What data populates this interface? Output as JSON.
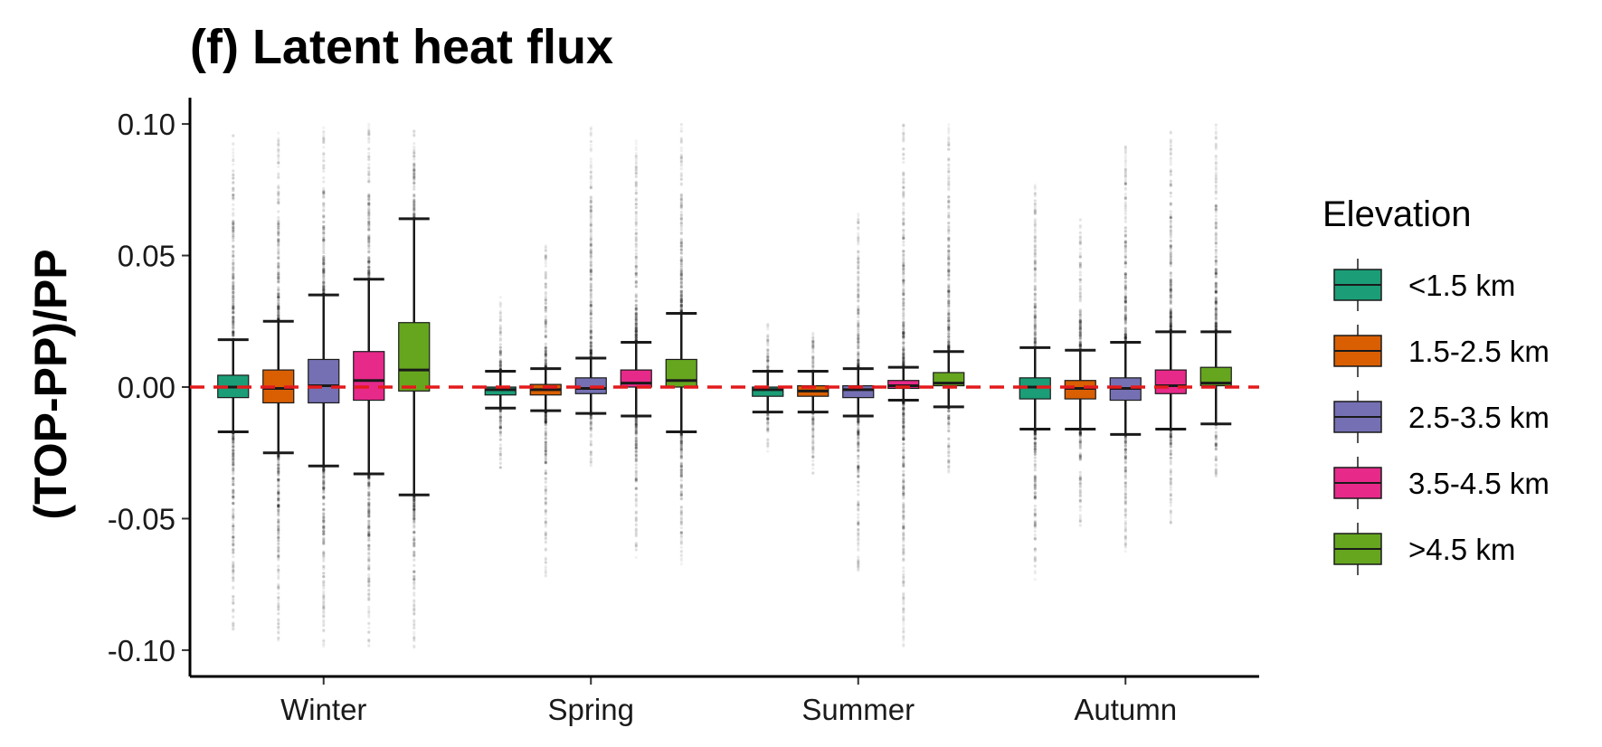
{
  "chart_data": {
    "type": "box",
    "title": "(f) Latent heat flux",
    "xlabel": "",
    "ylabel": "(TOP-PP)/PP",
    "ylim": [
      -0.11,
      0.11
    ],
    "y_ticks": [
      "0.10",
      "0.05",
      "0.00",
      "-0.05",
      "-0.10"
    ],
    "y_tick_values": [
      0.1,
      0.05,
      0.0,
      -0.05,
      -0.1
    ],
    "categories": [
      "Winter",
      "Spring",
      "Summer",
      "Autumn"
    ],
    "reference_line": {
      "y": 0.0,
      "color": "#e41a1c",
      "style": "dashed"
    },
    "legend": {
      "title": "Elevation",
      "placement": "right"
    },
    "series": [
      {
        "name": "<1.5 km",
        "color": "#1b9e77",
        "boxes": [
          {
            "category": "Winter",
            "whisker_low": -0.017,
            "q1": -0.004,
            "median": 0.0,
            "q3": 0.0045,
            "whisker_high": 0.018,
            "outlier_min": -0.093,
            "outlier_max": 0.096
          },
          {
            "category": "Spring",
            "whisker_low": -0.008,
            "q1": -0.003,
            "median": -0.001,
            "q3": 0.0,
            "whisker_high": 0.006,
            "outlier_min": -0.032,
            "outlier_max": 0.035
          },
          {
            "category": "Summer",
            "whisker_low": -0.0095,
            "q1": -0.0035,
            "median": -0.001,
            "q3": 0.0,
            "whisker_high": 0.006,
            "outlier_min": -0.025,
            "outlier_max": 0.025
          },
          {
            "category": "Autumn",
            "whisker_low": -0.016,
            "q1": -0.0045,
            "median": 0.0,
            "q3": 0.0035,
            "whisker_high": 0.015,
            "outlier_min": -0.076,
            "outlier_max": 0.077
          }
        ]
      },
      {
        "name": "1.5-2.5 km",
        "color": "#d95f02",
        "boxes": [
          {
            "category": "Winter",
            "whisker_low": -0.025,
            "q1": -0.006,
            "median": -0.0005,
            "q3": 0.0065,
            "whisker_high": 0.025,
            "outlier_min": -0.1,
            "outlier_max": 0.097
          },
          {
            "category": "Spring",
            "whisker_low": -0.009,
            "q1": -0.003,
            "median": -0.001,
            "q3": 0.001,
            "whisker_high": 0.007,
            "outlier_min": -0.072,
            "outlier_max": 0.056
          },
          {
            "category": "Summer",
            "whisker_low": -0.0095,
            "q1": -0.0035,
            "median": -0.0015,
            "q3": 0.0005,
            "whisker_high": 0.006,
            "outlier_min": -0.033,
            "outlier_max": 0.023
          },
          {
            "category": "Autumn",
            "whisker_low": -0.016,
            "q1": -0.0045,
            "median": -0.0005,
            "q3": 0.0025,
            "whisker_high": 0.014,
            "outlier_min": -0.053,
            "outlier_max": 0.065
          }
        ]
      },
      {
        "name": "2.5-3.5 km",
        "color": "#7570b3",
        "boxes": [
          {
            "category": "Winter",
            "whisker_low": -0.03,
            "q1": -0.006,
            "median": 0.0005,
            "q3": 0.0105,
            "whisker_high": 0.035,
            "outlier_min": -0.099,
            "outlier_max": 0.1
          },
          {
            "category": "Spring",
            "whisker_low": -0.01,
            "q1": -0.0025,
            "median": -0.0005,
            "q3": 0.0035,
            "whisker_high": 0.011,
            "outlier_min": -0.03,
            "outlier_max": 0.099
          },
          {
            "category": "Summer",
            "whisker_low": -0.011,
            "q1": -0.004,
            "median": -0.001,
            "q3": 0.0005,
            "whisker_high": 0.007,
            "outlier_min": -0.07,
            "outlier_max": 0.067
          },
          {
            "category": "Autumn",
            "whisker_low": -0.018,
            "q1": -0.005,
            "median": -0.0005,
            "q3": 0.0035,
            "whisker_high": 0.017,
            "outlier_min": -0.063,
            "outlier_max": 0.094
          }
        ]
      },
      {
        "name": "3.5-4.5 km",
        "color": "#e7298a",
        "boxes": [
          {
            "category": "Winter",
            "whisker_low": -0.033,
            "q1": -0.005,
            "median": 0.0025,
            "q3": 0.0135,
            "whisker_high": 0.041,
            "outlier_min": -0.099,
            "outlier_max": 0.1
          },
          {
            "category": "Spring",
            "whisker_low": -0.011,
            "q1": 0.0,
            "median": 0.0015,
            "q3": 0.0065,
            "whisker_high": 0.017,
            "outlier_min": -0.065,
            "outlier_max": 0.094
          },
          {
            "category": "Summer",
            "whisker_low": -0.005,
            "q1": -0.0005,
            "median": 0.0005,
            "q3": 0.0025,
            "whisker_high": 0.0075,
            "outlier_min": -0.099,
            "outlier_max": 0.1
          },
          {
            "category": "Autumn",
            "whisker_low": -0.016,
            "q1": -0.0025,
            "median": 0.0005,
            "q3": 0.0065,
            "whisker_high": 0.021,
            "outlier_min": -0.052,
            "outlier_max": 0.1
          }
        ]
      },
      {
        "name": ">4.5 km",
        "color": "#66a61e",
        "boxes": [
          {
            "category": "Winter",
            "whisker_low": -0.041,
            "q1": -0.0015,
            "median": 0.0065,
            "q3": 0.0245,
            "whisker_high": 0.064,
            "outlier_min": -0.099,
            "outlier_max": 0.1
          },
          {
            "category": "Spring",
            "whisker_low": -0.017,
            "q1": 0.0,
            "median": 0.0025,
            "q3": 0.0105,
            "whisker_high": 0.028,
            "outlier_min": -0.07,
            "outlier_max": 0.1
          },
          {
            "category": "Summer",
            "whisker_low": -0.0075,
            "q1": 0.0005,
            "median": 0.0015,
            "q3": 0.0055,
            "whisker_high": 0.0135,
            "outlier_min": -0.034,
            "outlier_max": 0.1
          },
          {
            "category": "Autumn",
            "whisker_low": -0.014,
            "q1": 0.0005,
            "median": 0.0015,
            "q3": 0.0075,
            "whisker_high": 0.021,
            "outlier_min": -0.035,
            "outlier_max": 0.1
          }
        ]
      }
    ]
  }
}
